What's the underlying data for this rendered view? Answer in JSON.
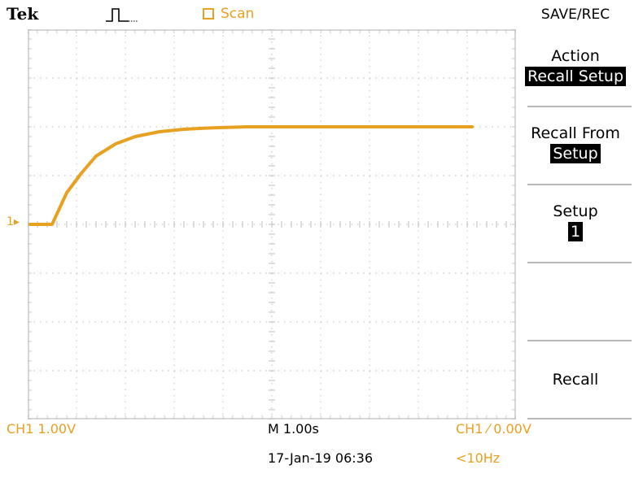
{
  "header": {
    "brand": "Tek",
    "acquisition_icon": "pulse-trigger-icon",
    "run_mode": "Scan"
  },
  "channel_marker": "1▸",
  "menu": {
    "title": "SAVE/REC",
    "items": [
      {
        "label": "Action",
        "value": "Recall Setup"
      },
      {
        "label": "Recall From",
        "value": "Setup"
      },
      {
        "label": "Setup",
        "value": "1"
      },
      {
        "label": "",
        "value": ""
      },
      {
        "label": "Recall",
        "value": ""
      }
    ]
  },
  "status": {
    "channel_scale": "CH1  1.00V",
    "timebase": "M 1.00s",
    "trigger": "CH1 ⁄ 0.00V",
    "datetime": "17-Jan-19 06:36",
    "frequency": "<10Hz"
  },
  "colors": {
    "trace": "#e8a020",
    "graticule": "#c8c8c8",
    "background": "#ffffff"
  },
  "chart_data": {
    "type": "line",
    "title": "",
    "xlabel": "",
    "ylabel": "",
    "x_divisions": 10,
    "y_divisions": 8,
    "volts_per_div": 1.0,
    "seconds_per_div": 1.0,
    "xlim": [
      0,
      10
    ],
    "ylim": [
      -4,
      4
    ],
    "grid": true,
    "series": [
      {
        "x": [
          0.05,
          0.5,
          0.8,
          1.1,
          1.4,
          1.8,
          2.2,
          2.7,
          3.2,
          3.8,
          4.5,
          5.5,
          6.5,
          7.5,
          8.5,
          9.1
        ],
        "y": [
          0.0,
          0.0,
          0.65,
          1.05,
          1.4,
          1.65,
          1.8,
          1.9,
          1.95,
          1.98,
          2.0,
          2.0,
          2.0,
          2.0,
          2.0,
          2.0
        ]
      }
    ]
  }
}
